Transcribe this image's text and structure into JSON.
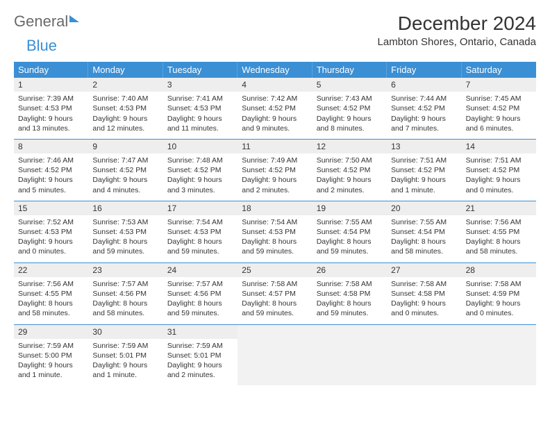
{
  "logo": {
    "word1": "General",
    "word2": "Blue"
  },
  "header": {
    "month_title": "December 2024",
    "location": "Lambton Shores, Ontario, Canada"
  },
  "colors": {
    "header_bg": "#3b8fd4",
    "header_text": "#ffffff",
    "daynum_bg": "#eeeeee",
    "week_divider": "#3b8fd4",
    "text": "#333333",
    "empty_bg": "#f2f2f2"
  },
  "typography": {
    "title_fontsize": 28,
    "location_fontsize": 15,
    "dow_fontsize": 13,
    "cell_fontsize": 10.5
  },
  "dow": [
    "Sunday",
    "Monday",
    "Tuesday",
    "Wednesday",
    "Thursday",
    "Friday",
    "Saturday"
  ],
  "weeks": [
    [
      {
        "n": 1,
        "sunrise": "7:39 AM",
        "sunset": "4:53 PM",
        "daylight": "9 hours and 13 minutes."
      },
      {
        "n": 2,
        "sunrise": "7:40 AM",
        "sunset": "4:53 PM",
        "daylight": "9 hours and 12 minutes."
      },
      {
        "n": 3,
        "sunrise": "7:41 AM",
        "sunset": "4:53 PM",
        "daylight": "9 hours and 11 minutes."
      },
      {
        "n": 4,
        "sunrise": "7:42 AM",
        "sunset": "4:52 PM",
        "daylight": "9 hours and 9 minutes."
      },
      {
        "n": 5,
        "sunrise": "7:43 AM",
        "sunset": "4:52 PM",
        "daylight": "9 hours and 8 minutes."
      },
      {
        "n": 6,
        "sunrise": "7:44 AM",
        "sunset": "4:52 PM",
        "daylight": "9 hours and 7 minutes."
      },
      {
        "n": 7,
        "sunrise": "7:45 AM",
        "sunset": "4:52 PM",
        "daylight": "9 hours and 6 minutes."
      }
    ],
    [
      {
        "n": 8,
        "sunrise": "7:46 AM",
        "sunset": "4:52 PM",
        "daylight": "9 hours and 5 minutes."
      },
      {
        "n": 9,
        "sunrise": "7:47 AM",
        "sunset": "4:52 PM",
        "daylight": "9 hours and 4 minutes."
      },
      {
        "n": 10,
        "sunrise": "7:48 AM",
        "sunset": "4:52 PM",
        "daylight": "9 hours and 3 minutes."
      },
      {
        "n": 11,
        "sunrise": "7:49 AM",
        "sunset": "4:52 PM",
        "daylight": "9 hours and 2 minutes."
      },
      {
        "n": 12,
        "sunrise": "7:50 AM",
        "sunset": "4:52 PM",
        "daylight": "9 hours and 2 minutes."
      },
      {
        "n": 13,
        "sunrise": "7:51 AM",
        "sunset": "4:52 PM",
        "daylight": "9 hours and 1 minute."
      },
      {
        "n": 14,
        "sunrise": "7:51 AM",
        "sunset": "4:52 PM",
        "daylight": "9 hours and 0 minutes."
      }
    ],
    [
      {
        "n": 15,
        "sunrise": "7:52 AM",
        "sunset": "4:53 PM",
        "daylight": "9 hours and 0 minutes."
      },
      {
        "n": 16,
        "sunrise": "7:53 AM",
        "sunset": "4:53 PM",
        "daylight": "8 hours and 59 minutes."
      },
      {
        "n": 17,
        "sunrise": "7:54 AM",
        "sunset": "4:53 PM",
        "daylight": "8 hours and 59 minutes."
      },
      {
        "n": 18,
        "sunrise": "7:54 AM",
        "sunset": "4:53 PM",
        "daylight": "8 hours and 59 minutes."
      },
      {
        "n": 19,
        "sunrise": "7:55 AM",
        "sunset": "4:54 PM",
        "daylight": "8 hours and 59 minutes."
      },
      {
        "n": 20,
        "sunrise": "7:55 AM",
        "sunset": "4:54 PM",
        "daylight": "8 hours and 58 minutes."
      },
      {
        "n": 21,
        "sunrise": "7:56 AM",
        "sunset": "4:55 PM",
        "daylight": "8 hours and 58 minutes."
      }
    ],
    [
      {
        "n": 22,
        "sunrise": "7:56 AM",
        "sunset": "4:55 PM",
        "daylight": "8 hours and 58 minutes."
      },
      {
        "n": 23,
        "sunrise": "7:57 AM",
        "sunset": "4:56 PM",
        "daylight": "8 hours and 58 minutes."
      },
      {
        "n": 24,
        "sunrise": "7:57 AM",
        "sunset": "4:56 PM",
        "daylight": "8 hours and 59 minutes."
      },
      {
        "n": 25,
        "sunrise": "7:58 AM",
        "sunset": "4:57 PM",
        "daylight": "8 hours and 59 minutes."
      },
      {
        "n": 26,
        "sunrise": "7:58 AM",
        "sunset": "4:58 PM",
        "daylight": "8 hours and 59 minutes."
      },
      {
        "n": 27,
        "sunrise": "7:58 AM",
        "sunset": "4:58 PM",
        "daylight": "9 hours and 0 minutes."
      },
      {
        "n": 28,
        "sunrise": "7:58 AM",
        "sunset": "4:59 PM",
        "daylight": "9 hours and 0 minutes."
      }
    ],
    [
      {
        "n": 29,
        "sunrise": "7:59 AM",
        "sunset": "5:00 PM",
        "daylight": "9 hours and 1 minute."
      },
      {
        "n": 30,
        "sunrise": "7:59 AM",
        "sunset": "5:01 PM",
        "daylight": "9 hours and 1 minute."
      },
      {
        "n": 31,
        "sunrise": "7:59 AM",
        "sunset": "5:01 PM",
        "daylight": "9 hours and 2 minutes."
      },
      null,
      null,
      null,
      null
    ]
  ],
  "labels": {
    "sunrise": "Sunrise:",
    "sunset": "Sunset:",
    "daylight": "Daylight:"
  }
}
